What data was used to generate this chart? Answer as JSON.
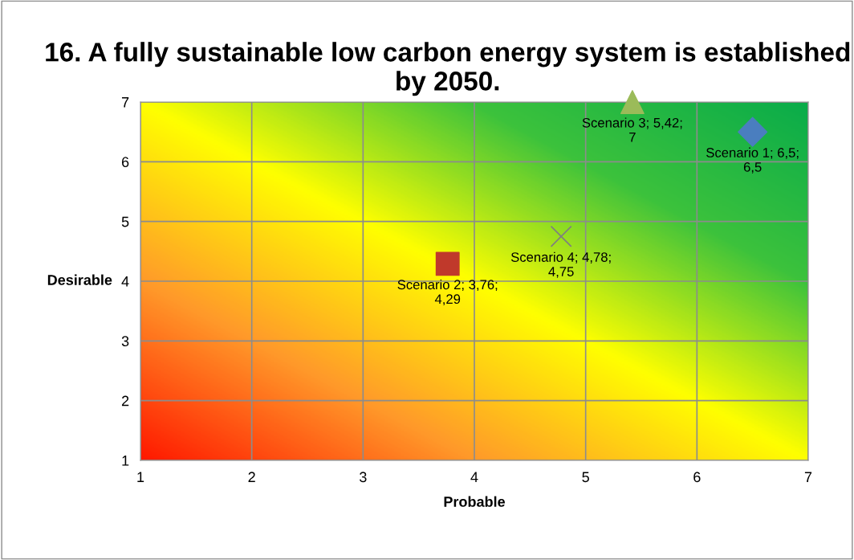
{
  "chart_data": {
    "type": "scatter",
    "title": "16. A fully sustainable low carbon energy system is established by 2050.",
    "xlabel": "Probable",
    "ylabel": "Desirable",
    "series": [
      {
        "color": "#4a7ebf",
        "marker": "diamond",
        "x": [
          6.5
        ],
        "values": [
          6.5
        ],
        "value_labels": [
          "Scenario 1; 6,5; 6,5"
        ]
      },
      {
        "color": "#c0392b",
        "marker": "square",
        "x": [
          3.76
        ],
        "values": [
          4.29
        ],
        "value_labels": [
          "Scenario 2; 3,76; 4,29"
        ]
      },
      {
        "color": "#9bbb59",
        "marker": "triangle",
        "x": [
          5.42
        ],
        "values": [
          7
        ],
        "value_labels": [
          "Scenario 3; 5,42; 7"
        ]
      },
      {
        "color": "#7f7f7f",
        "marker": "cross",
        "x": [
          4.78
        ],
        "values": [
          4.75
        ],
        "value_labels": [
          "Scenario 4; 4,78; 4,75"
        ]
      }
    ],
    "xlim": [
      1,
      7
    ],
    "ylim": [
      1,
      7
    ],
    "xticks": [
      1,
      2,
      3,
      4,
      5,
      6,
      7
    ],
    "yticks": [
      1,
      2,
      3,
      4,
      5,
      6,
      7
    ],
    "grid": true,
    "legend": false
  }
}
